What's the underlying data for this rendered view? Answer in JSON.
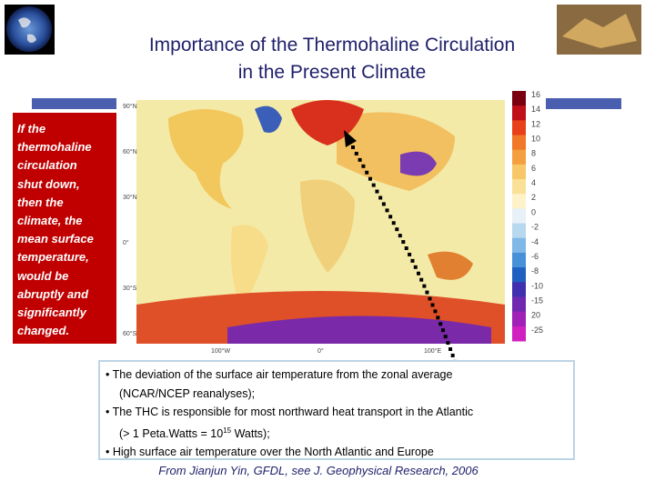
{
  "header": {
    "title_line1": "Importance of the Thermohaline Circulation",
    "title_line2": "in the Present Climate"
  },
  "callout": {
    "lines": [
      "If the",
      "thermohaline",
      "circulation",
      "shut down,",
      "then the",
      "climate, the",
      "mean surface",
      "temperature,",
      "would be",
      "abruptly and",
      "significantly",
      "changed."
    ]
  },
  "map": {
    "lat_labels": [
      "90°N",
      "60°N",
      "30°N",
      "0°",
      "30°S",
      "60°S"
    ],
    "lon_labels": [
      "100°W",
      "0°",
      "100°E"
    ],
    "colorbar_labels": [
      "16",
      "14",
      "12",
      "10",
      "8",
      "6",
      "4",
      "2",
      "0",
      "-2",
      "-4",
      "-6",
      "-8",
      "-10",
      "-15",
      "20",
      "-25"
    ]
  },
  "bullets": [
    {
      "line1": "The deviation of the surface air temperature from the zonal average",
      "line2": "(NCAR/NCEP reanalyses);"
    },
    {
      "line1": "The THC is responsible for most northward heat transport in the Atlantic",
      "line2_pre": "(> 1 Peta.Watts = 10",
      "line2_sup": "15",
      "line2_post": " Watts);"
    },
    {
      "line1": "High surface air temperature over the North Atlantic and Europe"
    }
  ],
  "citation": "From Jianjun Yin, GFDL, see J. Geophysical Research, 2006"
}
